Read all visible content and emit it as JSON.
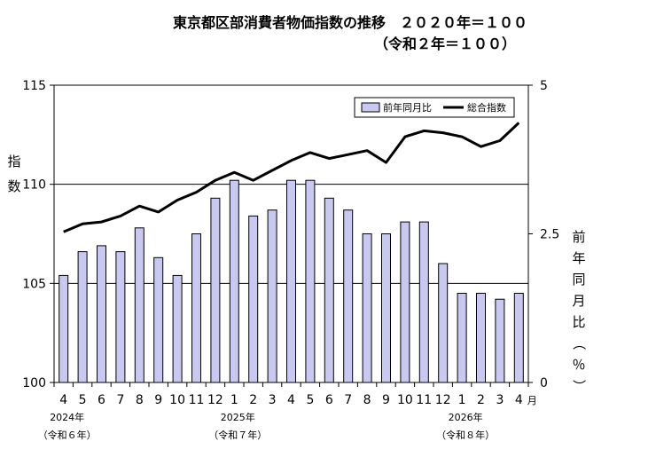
{
  "title_line1": "東京都区部消費者物価指数の推移　２０２０年＝１００",
  "title_line2": "（令和２年＝１００）",
  "chart_data": {
    "type": "bar+line",
    "categories": [
      "4",
      "5",
      "6",
      "7",
      "8",
      "9",
      "10",
      "11",
      "12",
      "1",
      "2",
      "3",
      "4",
      "5",
      "6",
      "7",
      "8",
      "9",
      "10",
      "11",
      "12",
      "1",
      "2",
      "3",
      "4"
    ],
    "month_unit": "月",
    "year_groups": [
      {
        "index": 0,
        "year": "2024年",
        "era": "（令和６年）"
      },
      {
        "index": 9,
        "year": "2025年",
        "era": "（令和７年）"
      },
      {
        "index": 21,
        "year": "2026年",
        "era": "（令和８年）"
      }
    ],
    "left_axis": {
      "label": "指数",
      "ylim": [
        100,
        115
      ],
      "ticks": [
        "100",
        "105",
        "110",
        "115"
      ],
      "ticks_values": [
        100,
        105,
        110,
        115
      ]
    },
    "right_axis": {
      "label": "前年同月比（％）",
      "ylim": [
        0,
        5
      ],
      "ticks": [
        "0",
        "2.5",
        "5"
      ],
      "ticks_values": [
        0,
        2.5,
        5
      ]
    },
    "gridlines_left": [
      105,
      110
    ],
    "legend": {
      "position": "top-right",
      "bar_label": "前年同月比",
      "line_label": "総合指数"
    },
    "series": [
      {
        "name": "前年同月比",
        "axis": "right",
        "render": "bar",
        "color": "#c8c8f0",
        "values": [
          1.8,
          2.2,
          2.3,
          2.2,
          2.6,
          2.1,
          1.8,
          2.5,
          3.1,
          3.4,
          2.8,
          2.9,
          3.4,
          3.4,
          3.1,
          2.9,
          2.5,
          2.5,
          2.7,
          2.7,
          2.0,
          1.5,
          1.5,
          1.4,
          1.5
        ]
      },
      {
        "name": "総合指数",
        "axis": "left",
        "render": "line",
        "color": "#000000",
        "values": [
          107.6,
          108.0,
          108.1,
          108.4,
          108.9,
          108.6,
          109.2,
          109.6,
          110.2,
          110.6,
          110.2,
          110.7,
          111.2,
          111.6,
          111.3,
          111.5,
          111.7,
          111.1,
          112.4,
          112.7,
          112.6,
          112.4,
          111.9,
          112.2,
          113.1
        ]
      }
    ]
  }
}
